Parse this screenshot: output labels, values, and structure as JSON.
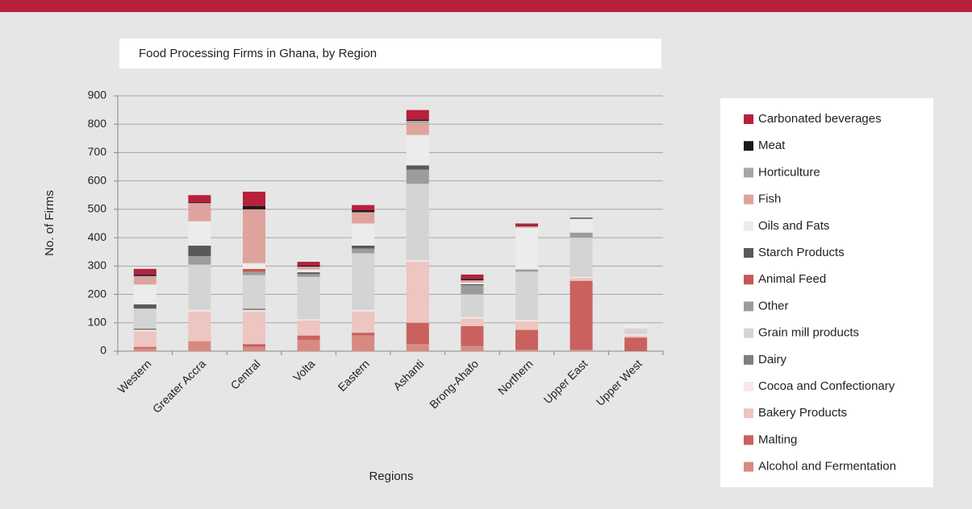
{
  "chart_data": {
    "type": "stacked_bar",
    "title": "Food Processing Firms in Ghana, by Region",
    "y_label": "No. of Firms",
    "x_label": "Regions",
    "categories": [
      "Western",
      "Greater Accra",
      "Central",
      "Volta",
      "Eastern",
      "Ashanti",
      "Brong-Ahafo",
      "Northern",
      "Upper East",
      "Upper West"
    ],
    "ylim": [
      0,
      900
    ],
    "yticks": [
      0,
      100,
      200,
      300,
      400,
      500,
      600,
      700,
      800,
      900
    ],
    "grid": true,
    "legend": "right",
    "series": [
      {
        "name": "Alcohol and Fermentation",
        "color": "#d98a80",
        "values": [
          10,
          35,
          15,
          40,
          55,
          25,
          18,
          5,
          5,
          0
        ]
      },
      {
        "name": "Malting",
        "color": "#c9625e",
        "values": [
          5,
          0,
          10,
          15,
          10,
          75,
          70,
          70,
          243,
          48
        ]
      },
      {
        "name": "Bakery Products",
        "color": "#edc5c1",
        "values": [
          55,
          105,
          115,
          53,
          75,
          215,
          27,
          30,
          10,
          7
        ]
      },
      {
        "name": "Cocoa and Confectionary",
        "color": "#f8e8e5",
        "values": [
          5,
          5,
          5,
          4,
          5,
          5,
          5,
          5,
          4,
          5
        ]
      },
      {
        "name": "Dairy",
        "color": "#7f7f7f",
        "values": [
          5,
          0,
          5,
          0,
          0,
          0,
          0,
          0,
          0,
          0
        ]
      },
      {
        "name": "Grain mill products",
        "color": "#d4d4d4",
        "values": [
          70,
          160,
          118,
          150,
          200,
          270,
          80,
          170,
          138,
          20
        ]
      },
      {
        "name": "Other",
        "color": "#9c9c9c",
        "values": [
          0,
          30,
          12,
          10,
          17,
          50,
          32,
          8,
          18,
          0
        ]
      },
      {
        "name": "Animal Feed",
        "color": "#c55753",
        "values": [
          0,
          0,
          10,
          0,
          0,
          0,
          0,
          0,
          0,
          0
        ]
      },
      {
        "name": "Starch Products",
        "color": "#595959",
        "values": [
          15,
          37,
          0,
          6,
          10,
          15,
          4,
          0,
          0,
          0
        ]
      },
      {
        "name": "Oils and Fats",
        "color": "#ececec",
        "values": [
          70,
          86,
          20,
          10,
          78,
          107,
          6,
          147,
          49,
          15
        ]
      },
      {
        "name": "Fish",
        "color": "#dea39d",
        "values": [
          27,
          64,
          190,
          10,
          40,
          43,
          8,
          5,
          0,
          0
        ]
      },
      {
        "name": "Horticulture",
        "color": "#a6a6a6",
        "values": [
          3,
          0,
          0,
          0,
          0,
          7,
          0,
          0,
          0,
          0
        ]
      },
      {
        "name": "Meat",
        "color": "#1a1a1a",
        "values": [
          5,
          3,
          12,
          4,
          7,
          4,
          5,
          2,
          3,
          0
        ]
      },
      {
        "name": "Carbonated beverages",
        "color": "#b8203c",
        "values": [
          20,
          25,
          50,
          13,
          18,
          34,
          15,
          8,
          0,
          0
        ]
      }
    ]
  }
}
